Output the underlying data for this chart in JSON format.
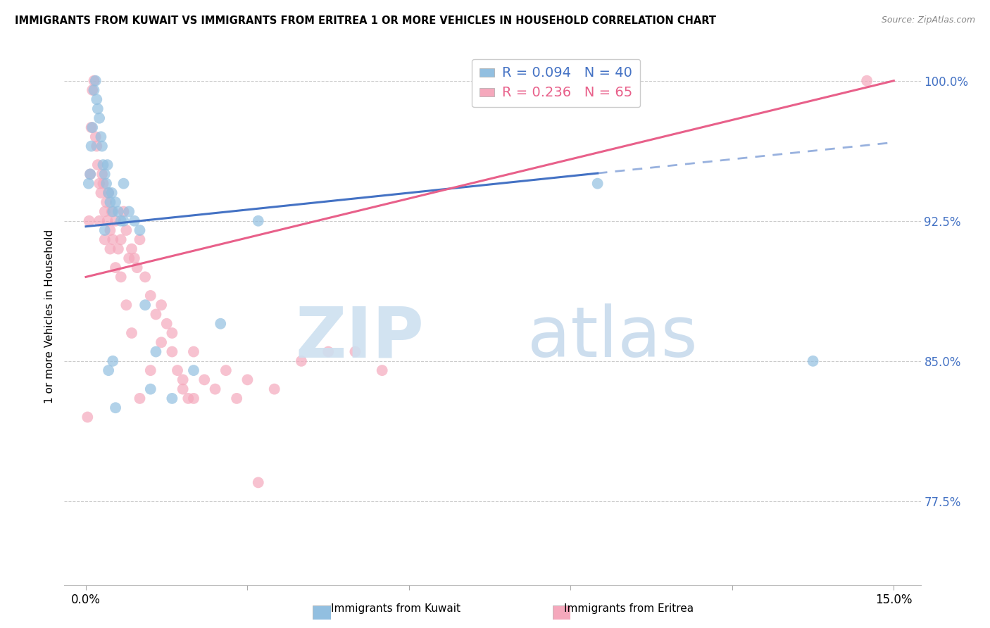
{
  "title": "IMMIGRANTS FROM KUWAIT VS IMMIGRANTS FROM ERITREA 1 OR MORE VEHICLES IN HOUSEHOLD CORRELATION CHART",
  "source": "Source: ZipAtlas.com",
  "ylabel": "1 or more Vehicles in Household",
  "xlim": [
    0.0,
    15.0
  ],
  "ylim": [
    73.0,
    101.8
  ],
  "legend_R_kuwait": "R = 0.094",
  "legend_N_kuwait": "N = 40",
  "legend_R_eritrea": "R = 0.236",
  "legend_N_eritrea": "N = 65",
  "kuwait_color": "#92bfe0",
  "eritrea_color": "#f5a8bc",
  "kuwait_line_color": "#4472c4",
  "eritrea_line_color": "#e8608a",
  "kuwait_x": [
    0.05,
    0.08,
    0.1,
    0.12,
    0.15,
    0.18,
    0.2,
    0.22,
    0.25,
    0.28,
    0.3,
    0.32,
    0.35,
    0.38,
    0.4,
    0.42,
    0.45,
    0.48,
    0.5,
    0.55,
    0.6,
    0.65,
    0.7,
    0.8,
    0.9,
    1.0,
    1.1,
    1.3,
    1.6,
    2.0,
    2.5,
    3.2,
    0.35,
    0.42,
    0.5,
    0.55,
    0.7,
    1.2,
    9.5,
    13.5
  ],
  "kuwait_y": [
    94.5,
    95.0,
    96.5,
    97.5,
    99.5,
    100.0,
    99.0,
    98.5,
    98.0,
    97.0,
    96.5,
    95.5,
    95.0,
    94.5,
    95.5,
    94.0,
    93.5,
    94.0,
    93.0,
    93.5,
    93.0,
    92.5,
    94.5,
    93.0,
    92.5,
    92.0,
    88.0,
    85.5,
    83.0,
    84.5,
    87.0,
    92.5,
    92.0,
    84.5,
    85.0,
    82.5,
    92.5,
    83.5,
    94.5,
    85.0
  ],
  "eritrea_x": [
    0.03,
    0.06,
    0.08,
    0.1,
    0.12,
    0.15,
    0.18,
    0.2,
    0.22,
    0.25,
    0.28,
    0.3,
    0.32,
    0.35,
    0.38,
    0.4,
    0.42,
    0.45,
    0.48,
    0.5,
    0.55,
    0.6,
    0.65,
    0.7,
    0.75,
    0.8,
    0.85,
    0.9,
    0.95,
    1.0,
    1.1,
    1.2,
    1.3,
    1.4,
    1.5,
    1.6,
    1.7,
    1.8,
    1.9,
    2.0,
    2.2,
    2.4,
    2.6,
    2.8,
    3.0,
    3.5,
    4.0,
    4.5,
    5.0,
    5.5,
    0.25,
    0.35,
    0.45,
    0.55,
    0.65,
    0.75,
    0.85,
    1.0,
    1.2,
    1.4,
    1.6,
    1.8,
    2.0,
    3.2,
    14.5
  ],
  "eritrea_y": [
    82.0,
    92.5,
    95.0,
    97.5,
    99.5,
    100.0,
    97.0,
    96.5,
    95.5,
    94.5,
    94.0,
    95.0,
    94.5,
    93.0,
    93.5,
    92.5,
    94.0,
    92.0,
    93.0,
    91.5,
    92.5,
    91.0,
    91.5,
    93.0,
    92.0,
    90.5,
    91.0,
    90.5,
    90.0,
    91.5,
    89.5,
    88.5,
    87.5,
    88.0,
    87.0,
    86.5,
    84.5,
    83.5,
    83.0,
    85.5,
    84.0,
    83.5,
    84.5,
    83.0,
    84.0,
    83.5,
    85.0,
    85.5,
    85.5,
    84.5,
    92.5,
    91.5,
    91.0,
    90.0,
    89.5,
    88.0,
    86.5,
    83.0,
    84.5,
    86.0,
    85.5,
    84.0,
    83.0,
    78.5,
    100.0
  ]
}
